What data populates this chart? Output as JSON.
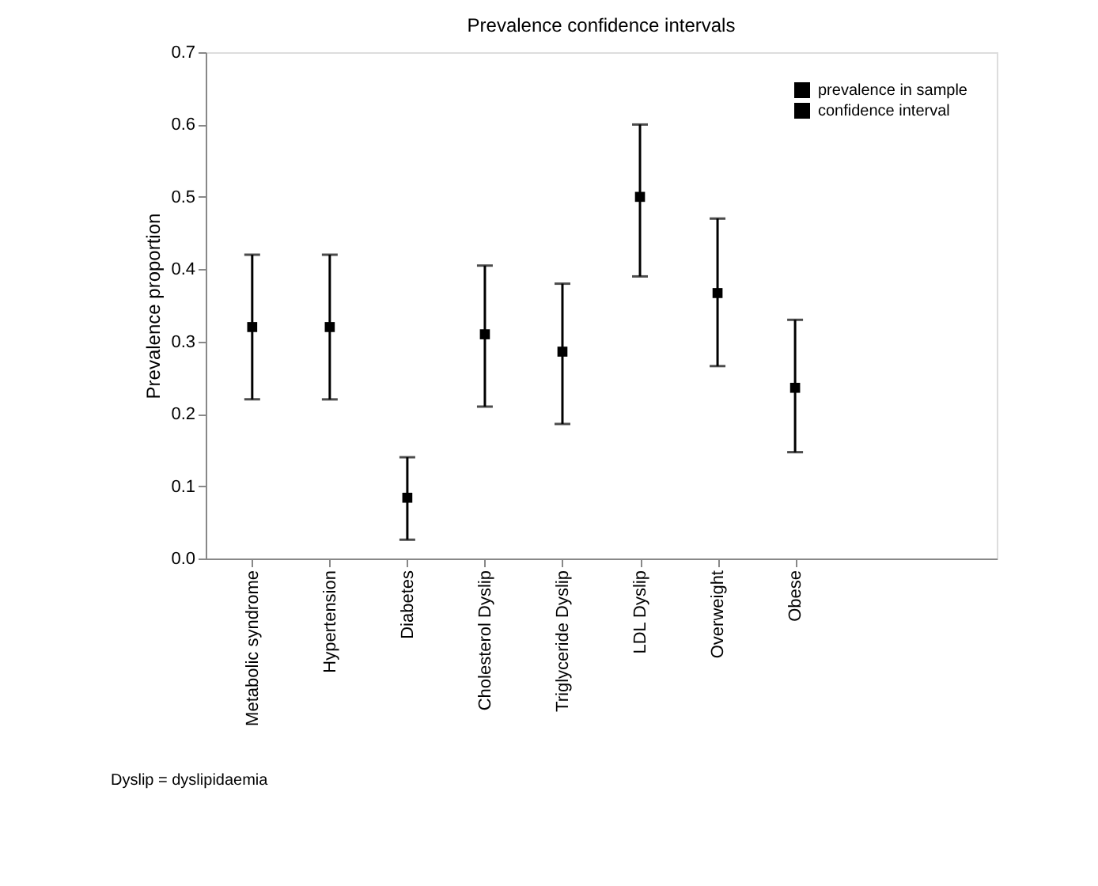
{
  "chart_data": {
    "type": "scatter",
    "title": "Prevalence confidence intervals",
    "ylabel": "Prevalence proportion",
    "categories": [
      "Metabolic syndrome",
      "Hypertension",
      "Diabetes",
      "Cholesterol Dyslip",
      "Triglyceride Dyslip",
      "LDL Dyslip",
      "Overweight",
      "Obese"
    ],
    "series": [
      {
        "name": "prevalence in sample",
        "color": "#000000",
        "values": [
          0.32,
          0.32,
          0.084,
          0.31,
          0.286,
          0.5,
          0.367,
          0.236
        ],
        "errors": [
          [
            0.22,
            0.42
          ],
          [
            0.22,
            0.42
          ],
          [
            0.026,
            0.14
          ],
          [
            0.21,
            0.405
          ],
          [
            0.186,
            0.38
          ],
          [
            0.39,
            0.6
          ],
          [
            0.266,
            0.47
          ],
          [
            0.147,
            0.33
          ]
        ]
      }
    ],
    "ylim": [
      0,
      0.7
    ],
    "yticks": [
      {
        "value": 0,
        "label": "0.0"
      },
      0.1,
      0.2,
      0.3,
      0.4,
      0.5,
      0.6,
      0.7
    ],
    "grid": false,
    "legend": "top right",
    "marker": "square",
    "annotations": [
      "confidence interval",
      "Dyslip = dyslipidaemia"
    ]
  }
}
